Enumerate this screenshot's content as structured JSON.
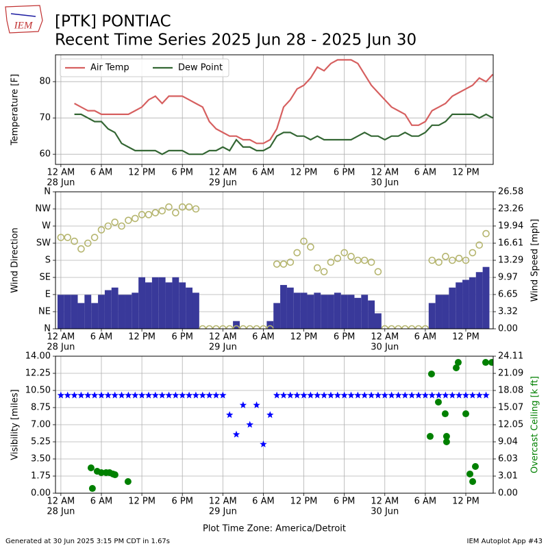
{
  "header": {
    "logo": "IEM",
    "title": "[PTK] PONTIAC",
    "subtitle": "Recent Time Series 2025 Jun 28 - 2025 Jun 30"
  },
  "chart_data": [
    {
      "type": "line",
      "ylabel": "Temperature [F]",
      "grid": true,
      "legend": "upper left",
      "xlim": [
        -0.8,
        64.06
      ],
      "ylim": [
        57.2,
        87.4
      ],
      "yticks": [
        60,
        70,
        80
      ],
      "xticks": [
        {
          "value": 0,
          "label": "12 AM"
        },
        {
          "value": 6,
          "label": "6 AM"
        },
        {
          "value": 12,
          "label": "12 PM"
        },
        {
          "value": 18,
          "label": "6 PM"
        },
        {
          "value": 24,
          "label": "12 AM"
        },
        {
          "value": 30,
          "label": "6 AM"
        },
        {
          "value": 36,
          "label": "12 PM"
        },
        {
          "value": 42,
          "label": "6 PM"
        },
        {
          "value": 48,
          "label": "12 AM"
        },
        {
          "value": 54,
          "label": "6 AM"
        },
        {
          "value": 60,
          "label": "12 PM"
        }
      ],
      "xdates": [
        {
          "value": 0,
          "label": "28 Jun"
        },
        {
          "value": 24,
          "label": "29 Jun"
        },
        {
          "value": 48,
          "label": "30 Jun"
        }
      ],
      "x": [
        2,
        3,
        4,
        5,
        6,
        7,
        8,
        9,
        10,
        11,
        12,
        13,
        14,
        15,
        16,
        17,
        18,
        19,
        20,
        21,
        22,
        23,
        24,
        25,
        26,
        27,
        28,
        29,
        30,
        31,
        32,
        33,
        34,
        35,
        36,
        37,
        38,
        39,
        40,
        41,
        42,
        43,
        44,
        45,
        46,
        47,
        48,
        49,
        50,
        51,
        52,
        53,
        54,
        55,
        56,
        57,
        58,
        59,
        60,
        61,
        62,
        63,
        64
      ],
      "series": [
        {
          "name": "Air Temp",
          "color": "#d65f5f",
          "values": [
            74,
            73,
            72,
            72,
            71,
            71,
            71,
            71,
            71,
            72,
            73,
            75,
            76,
            74,
            76,
            76,
            76,
            75,
            74,
            73,
            69,
            67,
            66,
            65,
            65,
            64,
            64,
            63,
            63,
            64,
            67,
            73,
            75,
            78,
            79,
            81,
            84,
            83,
            85,
            86,
            86,
            86,
            85,
            82,
            79,
            77,
            75,
            73,
            72,
            71,
            68,
            68,
            69,
            72,
            73,
            74,
            76,
            77,
            78,
            79,
            81,
            80,
            82
          ]
        },
        {
          "name": "Dew Point",
          "color": "#336633",
          "values": [
            71,
            71,
            70,
            69,
            69,
            67,
            66,
            63,
            62,
            61,
            61,
            61,
            61,
            60,
            61,
            61,
            61,
            60,
            60,
            60,
            61,
            61,
            62,
            61,
            64,
            62,
            62,
            61,
            61,
            62,
            65,
            66,
            66,
            65,
            65,
            64,
            65,
            64,
            64,
            64,
            64,
            64,
            65,
            66,
            65,
            65,
            64,
            65,
            65,
            66,
            65,
            65,
            66,
            68,
            68,
            69,
            71,
            71,
            71,
            71,
            70,
            71,
            70
          ]
        }
      ]
    },
    {
      "type": "combo",
      "ylabel": "Wind Direction",
      "y2label": "Wind Speed [mph]",
      "grid": true,
      "xlim": [
        -0.8,
        64.06
      ],
      "ylim": [
        0,
        360
      ],
      "yticks": [
        {
          "value": 0,
          "label": "N"
        },
        {
          "value": 45,
          "label": "NE"
        },
        {
          "value": 90,
          "label": "E"
        },
        {
          "value": 135,
          "label": "SE"
        },
        {
          "value": 180,
          "label": "S"
        },
        {
          "value": 225,
          "label": "SW"
        },
        {
          "value": 270,
          "label": "W"
        },
        {
          "value": 315,
          "label": "NW"
        },
        {
          "value": 360,
          "label": "N"
        }
      ],
      "y2lim": [
        0,
        26.58
      ],
      "y2ticks": [
        {
          "value": 0,
          "label": "0.00"
        },
        {
          "value": 3.32,
          "label": "3.32"
        },
        {
          "value": 6.65,
          "label": "6.65"
        },
        {
          "value": 9.97,
          "label": "9.97"
        },
        {
          "value": 13.29,
          "label": "13.29"
        },
        {
          "value": 16.61,
          "label": "16.61"
        },
        {
          "value": 19.94,
          "label": "19.94"
        },
        {
          "value": 23.26,
          "label": "23.26"
        },
        {
          "value": 26.58,
          "label": "26.58"
        }
      ],
      "xticks": [
        {
          "value": 0,
          "label": "12 AM"
        },
        {
          "value": 6,
          "label": "6 AM"
        },
        {
          "value": 12,
          "label": "12 PM"
        },
        {
          "value": 18,
          "label": "6 PM"
        },
        {
          "value": 24,
          "label": "12 AM"
        },
        {
          "value": 30,
          "label": "6 AM"
        },
        {
          "value": 36,
          "label": "12 PM"
        },
        {
          "value": 42,
          "label": "6 PM"
        },
        {
          "value": 48,
          "label": "12 AM"
        },
        {
          "value": 54,
          "label": "6 AM"
        },
        {
          "value": 60,
          "label": "12 PM"
        }
      ],
      "xdates": [
        {
          "value": 0,
          "label": "28 Jun"
        },
        {
          "value": 24,
          "label": "29 Jun"
        },
        {
          "value": 48,
          "label": "30 Jun"
        }
      ],
      "x": [
        0,
        1,
        2,
        3,
        4,
        5,
        6,
        7,
        8,
        9,
        10,
        11,
        12,
        13,
        14,
        15,
        16,
        17,
        18,
        19,
        20,
        21,
        22,
        23,
        24,
        25,
        26,
        27,
        28,
        29,
        30,
        31,
        32,
        33,
        34,
        35,
        36,
        37,
        38,
        39,
        40,
        41,
        42,
        43,
        44,
        45,
        46,
        47,
        48,
        49,
        50,
        51,
        52,
        53,
        54,
        55,
        56,
        57,
        58,
        59,
        60,
        61,
        62,
        63
      ],
      "series": [
        {
          "type": "bar",
          "axis": "y2",
          "color": "#39399a",
          "values": [
            6.6,
            6.6,
            6.6,
            5,
            6.6,
            5,
            6.6,
            7.5,
            8,
            6.6,
            6.6,
            7,
            10,
            9,
            10,
            10,
            9,
            10,
            9,
            8,
            7,
            0,
            0,
            0,
            0,
            0,
            1.5,
            0,
            0,
            0,
            0,
            1.5,
            5,
            8.5,
            8,
            7,
            7,
            6.6,
            7,
            6.6,
            6.6,
            7,
            6.6,
            6.6,
            6,
            6.6,
            5.5,
            3,
            0,
            0,
            0,
            0,
            0,
            0,
            0,
            5,
            6.6,
            6.6,
            8,
            9,
            9.5,
            10,
            11,
            12
          ]
        },
        {
          "type": "scatter",
          "marker": "circle-open",
          "color": "#b5b56e",
          "values": [
            240,
            240,
            230,
            210,
            225,
            240,
            260,
            270,
            280,
            270,
            285,
            290,
            300,
            300,
            305,
            310,
            320,
            305,
            320,
            320,
            315,
            0,
            0,
            0,
            0,
            0,
            0,
            0,
            0,
            0,
            0,
            0,
            170,
            170,
            175,
            200,
            230,
            215,
            160,
            150,
            175,
            185,
            200,
            190,
            180,
            180,
            175,
            150,
            0,
            0,
            0,
            0,
            0,
            0,
            0,
            180,
            175,
            190,
            180,
            185,
            180,
            200,
            220,
            250
          ]
        }
      ]
    },
    {
      "type": "combo",
      "ylabel": "Visibility [miles]",
      "y2label": "Overcast Ceiling [k ft]",
      "y2color": "#008000",
      "grid": true,
      "xlabel": "Plot Time Zone: America/Detroit",
      "xlim": [
        -0.8,
        64.06
      ],
      "ylim": [
        0,
        14
      ],
      "yticks": [
        {
          "value": 0,
          "label": "0.00"
        },
        {
          "value": 1.75,
          "label": "1.75"
        },
        {
          "value": 3.5,
          "label": "3.50"
        },
        {
          "value": 5.25,
          "label": "5.25"
        },
        {
          "value": 7,
          "label": "7.00"
        },
        {
          "value": 8.75,
          "label": "8.75"
        },
        {
          "value": 10.5,
          "label": "10.50"
        },
        {
          "value": 12.25,
          "label": "12.25"
        },
        {
          "value": 14,
          "label": "14.00"
        }
      ],
      "y2lim": [
        0,
        24.11
      ],
      "y2ticks": [
        {
          "value": 0,
          "label": "0.00"
        },
        {
          "value": 3.01,
          "label": "3.01"
        },
        {
          "value": 6.03,
          "label": "6.03"
        },
        {
          "value": 9.04,
          "label": "9.04"
        },
        {
          "value": 12.05,
          "label": "12.05"
        },
        {
          "value": 15.07,
          "label": "15.07"
        },
        {
          "value": 18.08,
          "label": "18.08"
        },
        {
          "value": 21.09,
          "label": "21.09"
        },
        {
          "value": 24.11,
          "label": "24.11"
        }
      ],
      "xticks": [
        {
          "value": 0,
          "label": "12 AM"
        },
        {
          "value": 6,
          "label": "6 AM"
        },
        {
          "value": 12,
          "label": "12 PM"
        },
        {
          "value": 18,
          "label": "6 PM"
        },
        {
          "value": 24,
          "label": "12 AM"
        },
        {
          "value": 30,
          "label": "6 AM"
        },
        {
          "value": 36,
          "label": "12 PM"
        },
        {
          "value": 42,
          "label": "6 PM"
        },
        {
          "value": 48,
          "label": "12 AM"
        },
        {
          "value": 54,
          "label": "6 AM"
        },
        {
          "value": 60,
          "label": "12 PM"
        }
      ],
      "xdates": [
        {
          "value": 0,
          "label": "28 Jun"
        },
        {
          "value": 24,
          "label": "29 Jun"
        },
        {
          "value": 48,
          "label": "30 Jun"
        }
      ],
      "series": [
        {
          "type": "scatter",
          "marker": "star",
          "color": "#0000ff",
          "x": [
            0,
            1,
            2,
            3,
            4,
            5,
            6,
            7,
            8,
            9,
            10,
            11,
            12,
            13,
            14,
            15,
            16,
            17,
            18,
            19,
            20,
            21,
            22,
            23,
            24,
            25,
            26,
            27,
            28,
            29,
            30,
            31,
            32,
            33,
            34,
            35,
            36,
            37,
            38,
            39,
            40,
            41,
            42,
            43,
            44,
            45,
            46,
            47,
            48,
            49,
            50,
            51,
            52,
            53,
            54,
            55,
            56,
            57,
            58,
            59,
            60,
            61,
            62,
            63
          ],
          "values": [
            10,
            10,
            10,
            10,
            10,
            10,
            10,
            10,
            10,
            10,
            10,
            10,
            10,
            10,
            10,
            10,
            10,
            10,
            10,
            10,
            10,
            10,
            10,
            10,
            10,
            8,
            6,
            9,
            7,
            9,
            5,
            8,
            10,
            10,
            10,
            10,
            10,
            10,
            10,
            10,
            10,
            10,
            10,
            10,
            10,
            10,
            10,
            10,
            10,
            10,
            10,
            10,
            10,
            10,
            10,
            10,
            10,
            10,
            10,
            10,
            10,
            10,
            10,
            10
          ]
        },
        {
          "type": "scatter",
          "marker": "circle",
          "axis": "y2",
          "color": "#008000",
          "x": [
            4.47,
            4.67,
            5.38,
            5.99,
            6.7,
            7.21,
            7.72,
            8.02,
            9.95,
            54.72,
            54.92,
            55.94,
            56.95,
            57.15,
            57.15,
            58.58,
            58.88,
            60.0,
            60.61,
            61.02,
            61.42,
            62.94,
            63.86
          ],
          "values": [
            4.46,
            0.84,
            3.86,
            3.62,
            3.62,
            3.62,
            3.38,
            3.25,
            2.05,
            10.0,
            20.98,
            16.03,
            13.98,
            10.0,
            9.04,
            22.06,
            23.02,
            13.98,
            3.38,
            2.05,
            4.7,
            23.02,
            23.02
          ]
        }
      ]
    }
  ],
  "footer": {
    "left": "Generated at 30 Jun 2025 3:15 PM CDT in 1.67s",
    "right": "IEM Autoplot App #43"
  }
}
